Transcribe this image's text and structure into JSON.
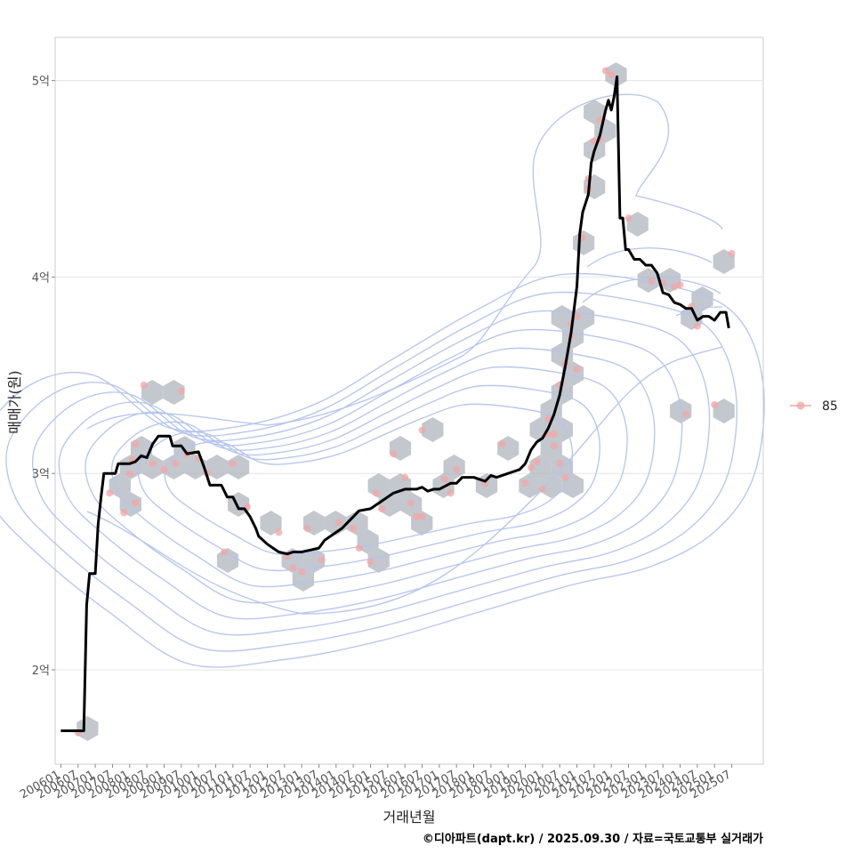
{
  "chart_data": {
    "type": "line",
    "xlabel": "거래년월",
    "ylabel": "매매가(원)",
    "caption": "©디아파트(dapt.kr) / 2025.09.30 / 자료=국토교통부 실거래가",
    "legend": {
      "label": "85",
      "position": "right"
    },
    "grid": true,
    "x_range": [
      "2005-11",
      "2026-06"
    ],
    "y_range": [
      1.52,
      5.22
    ],
    "y_unit": "억",
    "y_ticks": [
      {
        "value": 2,
        "label": "2억"
      },
      {
        "value": 3,
        "label": "3억"
      },
      {
        "value": 4,
        "label": "4억"
      },
      {
        "value": 5,
        "label": "5억"
      }
    ],
    "x_ticks": [
      "200601",
      "200607",
      "200701",
      "200707",
      "200801",
      "200807",
      "200901",
      "200907",
      "201001",
      "201007",
      "201101",
      "201107",
      "201201",
      "201207",
      "201301",
      "201307",
      "201401",
      "201407",
      "201501",
      "201507",
      "201601",
      "201607",
      "201701",
      "201707",
      "201801",
      "201807",
      "201901",
      "201907",
      "202001",
      "202007",
      "202101",
      "202107",
      "202201",
      "202207",
      "202301",
      "202307",
      "202401",
      "202407",
      "202501",
      "202507"
    ],
    "colors": {
      "line": "#000000",
      "points": "#f4a6a6",
      "hexbin": "#b4b9c2",
      "contour": "#b5c4ee",
      "grid": "#e4e4e4",
      "panel_border": "#cccccc"
    },
    "series": [
      {
        "type": "line",
        "points": [
          [
            "2006-01",
            1.69
          ],
          [
            "2006-07",
            1.69
          ],
          [
            "2006-09",
            1.69
          ],
          [
            "2006-10",
            2.33
          ],
          [
            "2006-11",
            2.49
          ],
          [
            "2007-01",
            2.49
          ],
          [
            "2007-02",
            2.74
          ],
          [
            "2007-03",
            2.88
          ],
          [
            "2007-04",
            3.0
          ],
          [
            "2007-08",
            3.0
          ],
          [
            "2007-09",
            3.05
          ],
          [
            "2008-01",
            3.05
          ],
          [
            "2008-03",
            3.06
          ],
          [
            "2008-05",
            3.09
          ],
          [
            "2008-07",
            3.08
          ],
          [
            "2008-09",
            3.15
          ],
          [
            "2008-11",
            3.19
          ],
          [
            "2009-03",
            3.19
          ],
          [
            "2009-04",
            3.14
          ],
          [
            "2009-07",
            3.14
          ],
          [
            "2009-09",
            3.1
          ],
          [
            "2010-01",
            3.11
          ],
          [
            "2010-03",
            3.03
          ],
          [
            "2010-05",
            2.94
          ],
          [
            "2010-09",
            2.94
          ],
          [
            "2010-11",
            2.88
          ],
          [
            "2011-01",
            2.88
          ],
          [
            "2011-03",
            2.82
          ],
          [
            "2011-05",
            2.82
          ],
          [
            "2011-07",
            2.78
          ],
          [
            "2011-09",
            2.72
          ],
          [
            "2011-10",
            2.68
          ],
          [
            "2012-01",
            2.64
          ],
          [
            "2012-03",
            2.62
          ],
          [
            "2012-05",
            2.6
          ],
          [
            "2012-08",
            2.59
          ],
          [
            "2012-10",
            2.6
          ],
          [
            "2013-01",
            2.6
          ],
          [
            "2013-04",
            2.61
          ],
          [
            "2013-07",
            2.62
          ],
          [
            "2013-09",
            2.66
          ],
          [
            "2014-01",
            2.7
          ],
          [
            "2014-03",
            2.72
          ],
          [
            "2014-05",
            2.75
          ],
          [
            "2014-07",
            2.78
          ],
          [
            "2014-09",
            2.81
          ],
          [
            "2015-01",
            2.82
          ],
          [
            "2015-03",
            2.84
          ],
          [
            "2015-05",
            2.86
          ],
          [
            "2015-07",
            2.88
          ],
          [
            "2015-09",
            2.9
          ],
          [
            "2016-01",
            2.92
          ],
          [
            "2016-05",
            2.92
          ],
          [
            "2016-07",
            2.93
          ],
          [
            "2016-09",
            2.91
          ],
          [
            "2016-11",
            2.92
          ],
          [
            "2017-01",
            2.92
          ],
          [
            "2017-05",
            2.95
          ],
          [
            "2017-07",
            2.95
          ],
          [
            "2017-09",
            2.98
          ],
          [
            "2018-01",
            2.98
          ],
          [
            "2018-03",
            2.97
          ],
          [
            "2018-05",
            2.96
          ],
          [
            "2018-07",
            2.99
          ],
          [
            "2018-09",
            2.98
          ],
          [
            "2019-01",
            3.0
          ],
          [
            "2019-03",
            3.01
          ],
          [
            "2019-05",
            3.02
          ],
          [
            "2019-07",
            3.05
          ],
          [
            "2019-09",
            3.12
          ],
          [
            "2019-11",
            3.16
          ],
          [
            "2020-01",
            3.18
          ],
          [
            "2020-03",
            3.23
          ],
          [
            "2020-05",
            3.3
          ],
          [
            "2020-07",
            3.4
          ],
          [
            "2020-09",
            3.55
          ],
          [
            "2020-11",
            3.72
          ],
          [
            "2021-01",
            3.95
          ],
          [
            "2021-02",
            4.22
          ],
          [
            "2021-03",
            4.33
          ],
          [
            "2021-05",
            4.42
          ],
          [
            "2021-06",
            4.58
          ],
          [
            "2021-07",
            4.64
          ],
          [
            "2021-09",
            4.72
          ],
          [
            "2021-11",
            4.85
          ],
          [
            "2021-12",
            4.9
          ],
          [
            "2022-01",
            4.85
          ],
          [
            "2022-02",
            4.92
          ],
          [
            "2022-03",
            5.02
          ],
          [
            "2022-04",
            4.3
          ],
          [
            "2022-05",
            4.3
          ],
          [
            "2022-06",
            4.14
          ],
          [
            "2022-07",
            4.14
          ],
          [
            "2022-09",
            4.09
          ],
          [
            "2022-11",
            4.09
          ],
          [
            "2023-01",
            4.06
          ],
          [
            "2023-03",
            4.06
          ],
          [
            "2023-05",
            4.02
          ],
          [
            "2023-07",
            3.92
          ],
          [
            "2023-09",
            3.91
          ],
          [
            "2023-11",
            3.87
          ],
          [
            "2024-01",
            3.86
          ],
          [
            "2024-03",
            3.84
          ],
          [
            "2024-05",
            3.84
          ],
          [
            "2024-07",
            3.78
          ],
          [
            "2024-09",
            3.8
          ],
          [
            "2024-11",
            3.8
          ],
          [
            "2025-01",
            3.78
          ],
          [
            "2025-03",
            3.82
          ],
          [
            "2025-05",
            3.82
          ],
          [
            "2025-06",
            3.74
          ]
        ]
      },
      {
        "type": "scatter",
        "name": "85",
        "points": [
          [
            "2006-07",
            1.68
          ],
          [
            "2007-06",
            2.9
          ],
          [
            "2007-11",
            2.8
          ],
          [
            "2008-01",
            3.0
          ],
          [
            "2008-02",
            3.07
          ],
          [
            "2008-03",
            3.15
          ],
          [
            "2008-03",
            2.85
          ],
          [
            "2008-06",
            3.45
          ],
          [
            "2008-09",
            3.05
          ],
          [
            "2009-01",
            3.02
          ],
          [
            "2009-05",
            3.05
          ],
          [
            "2009-07",
            3.42
          ],
          [
            "2009-09",
            3.1
          ],
          [
            "2010-01",
            3.08
          ],
          [
            "2010-04",
            3.0
          ],
          [
            "2010-10",
            2.6
          ],
          [
            "2011-01",
            3.05
          ],
          [
            "2011-06",
            2.83
          ],
          [
            "2012-05",
            2.7
          ],
          [
            "2012-08",
            2.58
          ],
          [
            "2012-10",
            2.52
          ],
          [
            "2013-01",
            2.5
          ],
          [
            "2013-03",
            2.72
          ],
          [
            "2013-08",
            2.56
          ],
          [
            "2014-02",
            2.75
          ],
          [
            "2014-07",
            2.72
          ],
          [
            "2014-09",
            2.62
          ],
          [
            "2015-01",
            2.55
          ],
          [
            "2015-03",
            2.9
          ],
          [
            "2015-05",
            2.82
          ],
          [
            "2015-09",
            3.1
          ],
          [
            "2016-01",
            2.98
          ],
          [
            "2016-03",
            2.85
          ],
          [
            "2016-05",
            2.78
          ],
          [
            "2016-07",
            2.78
          ],
          [
            "2016-07",
            3.22
          ],
          [
            "2017-03",
            2.97
          ],
          [
            "2017-05",
            2.9
          ],
          [
            "2017-07",
            3.02
          ],
          [
            "2018-05",
            2.95
          ],
          [
            "2018-11",
            3.15
          ],
          [
            "2019-07",
            2.95
          ],
          [
            "2019-09",
            3.03
          ],
          [
            "2019-11",
            3.06
          ],
          [
            "2020-01",
            2.92
          ],
          [
            "2020-03",
            3.28
          ],
          [
            "2020-03",
            3.2
          ],
          [
            "2020-05",
            3.2
          ],
          [
            "2020-05",
            3.14
          ],
          [
            "2020-07",
            3.45
          ],
          [
            "2020-07",
            3.05
          ],
          [
            "2020-09",
            3.56
          ],
          [
            "2020-09",
            2.98
          ],
          [
            "2020-11",
            3.7
          ],
          [
            "2020-11",
            3.76
          ],
          [
            "2021-01",
            3.53
          ],
          [
            "2021-01",
            3.8
          ],
          [
            "2021-03",
            4.2
          ],
          [
            "2021-05",
            4.45
          ],
          [
            "2021-05",
            4.5
          ],
          [
            "2021-07",
            4.69
          ],
          [
            "2021-09",
            4.8
          ],
          [
            "2021-09",
            4.7
          ],
          [
            "2021-11",
            5.05
          ],
          [
            "2022-01",
            5.03
          ],
          [
            "2022-07",
            4.3
          ],
          [
            "2023-03",
            3.98
          ],
          [
            "2023-07",
            3.97
          ],
          [
            "2023-11",
            3.95
          ],
          [
            "2024-01",
            3.96
          ],
          [
            "2024-03",
            3.3
          ],
          [
            "2024-05",
            3.85
          ],
          [
            "2024-07",
            3.75
          ],
          [
            "2025-01",
            3.35
          ],
          [
            "2025-07",
            4.12
          ]
        ]
      }
    ]
  }
}
